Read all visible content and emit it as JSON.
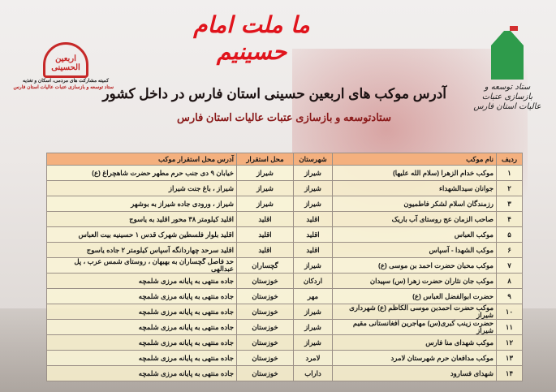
{
  "slogan": "ما ملت امام حسینیم",
  "heading": "آدرس موکب های اربعین حسینی استان فارس در داخل کشور",
  "subheading": "ستادتوسعه و بازسازی عتبات عالیات استان فارس",
  "logo_left": {
    "mark": "اربعین الحسینی",
    "line1": "کمیته مشارکت های مردمی، اسکان و تغذیه",
    "line2": "ستاد توسعه و بازسازی عتبات عالیات استان فارس"
  },
  "logo_right": {
    "text": "ستاد توسعه و بازسازی عتبات عالیات استان فارس"
  },
  "table": {
    "headers": [
      "ردیف",
      "نام موکب",
      "شهرستان",
      "محل استقرار",
      "آدرس محل استقرار موکب"
    ],
    "rows": [
      [
        "۱",
        "موکب خدام الزهرا (سلام الله علیها)",
        "شیراز",
        "شیراز",
        "خیابان ۹ دی جنب حرم مطهر حضرت شاهچراغ (ع)"
      ],
      [
        "۲",
        "جوانان سیدالشهداء",
        "شیراز",
        "شیراز",
        "شیراز ، باغ جنت شیراز"
      ],
      [
        "۳",
        "رزمندگان اسلام لشکر فاطمیون",
        "شیراز",
        "شیراز",
        "شیراز ، ورودی جاده شیراز به بوشهر"
      ],
      [
        "۴",
        "صاحب الزمان عج روستای آب باریک",
        "اقلید",
        "اقلید",
        "اقلید کیلومتر ۳۸ محور اقلید به یاسوج"
      ],
      [
        "۵",
        "موکب العباس",
        "اقلید",
        "اقلید",
        "اقلید بلوار فلسطین شهرک قدس ۱ حسینیه بیت العباس"
      ],
      [
        "۶",
        "موکب الشهدا - آسپاس",
        "اقلید",
        "اقلید",
        "اقلید سرحد چهاردانگه آسپاس کیلومتر ۲ جاده یاسوج"
      ],
      [
        "۷",
        "موکب محبان حضرت احمد بن موسی (ع)",
        "شیراز",
        "گچساران",
        "حد فاصل گچساران به بهبهان ، روستای شمس عرب ، پل عبدالهی"
      ],
      [
        "۸",
        "موکب جان نثاران حضرت زهرا (س) سپیدان",
        "اردکان",
        "خوزستان",
        "جاده منتهی به پایانه مرزی شلمچه"
      ],
      [
        "۹",
        "حضرت ابوالفضل العباس (ع)",
        "مهر",
        "خوزستان",
        "جاده منتهی به پایانه مرزی شلمچه"
      ],
      [
        "۱۰",
        "موکب حضرت احمدبن موسی الکاظم (ع) شهرداری شیراز",
        "شیراز",
        "خوزستان",
        "جاده منتهی به پایانه مرزی شلمچه"
      ],
      [
        "۱۱",
        "حضرت زینب کبری(س) مهاجرین افغانستانی مقیم شیراز",
        "شیراز",
        "خوزستان",
        "جاده منتهی به پایانه مرزی شلمچه"
      ],
      [
        "۱۲",
        "موکب شهدای منا فارس",
        "شیراز",
        "خوزستان",
        "جاده منتهی به پایانه مرزی شلمچه"
      ],
      [
        "۱۳",
        "موکب مدافعان حرم شهرستان لامرد",
        "لامرد",
        "خوزستان",
        "جاده منتهی به پایانه مرزی شلمچه"
      ],
      [
        "۱۴",
        "شهدای فسارود",
        "داراب",
        "خوزستان",
        "جاده منتهی به پایانه مرزی شلمچه"
      ]
    ]
  },
  "colors": {
    "slogan": "#e0141c",
    "header_bg": "#f4b07e",
    "row_bg": "#faf4d6",
    "logo_green": "#2e9b4b",
    "logo_red": "#c62828"
  }
}
